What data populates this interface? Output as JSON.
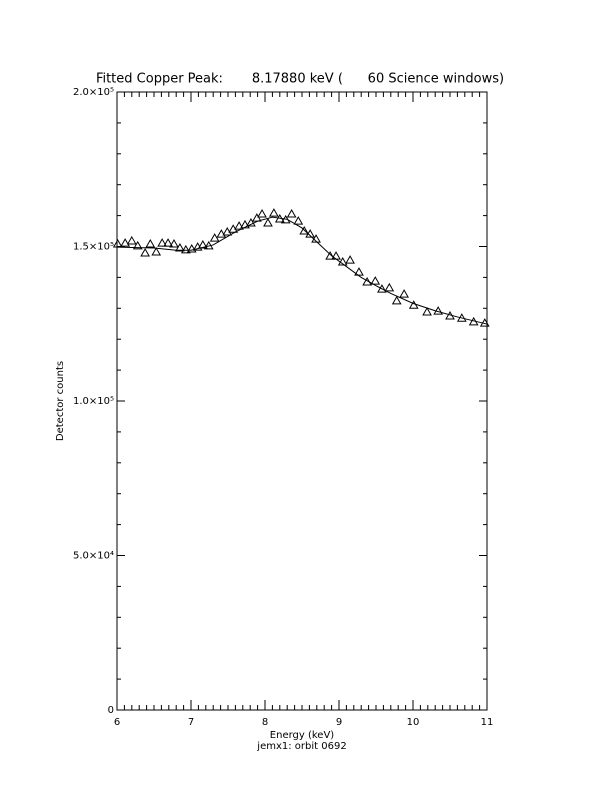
{
  "chart_data": {
    "type": "scatter",
    "title": "Fitted Copper Peak:       8.17880 keV (      60 Science windows)",
    "x_label": "Energy (keV)",
    "y_label": "Detector counts",
    "footer": "jemx1: orbit 0692",
    "xlim": [
      6,
      11
    ],
    "xticks": [
      6,
      7,
      8,
      9,
      10,
      11
    ],
    "ylim": [
      0,
      200000
    ],
    "yticks": [
      0,
      {
        "value": 50000,
        "label": "5.0×10⁴"
      },
      {
        "value": 100000,
        "label": "1.0×10⁵"
      },
      {
        "value": 150000,
        "label": "1.5×10⁵"
      },
      {
        "value": 200000,
        "label": "2.0×10⁵"
      }
    ],
    "minor_ticks": true,
    "color": "#000000",
    "series": [
      {
        "type": "scatter",
        "marker": "triangle",
        "x": [
          6.01,
          6.11,
          6.2,
          6.28,
          6.38,
          6.45,
          6.53,
          6.61,
          6.69,
          6.77,
          6.85,
          6.93,
          7.01,
          7.09,
          7.16,
          7.24,
          7.32,
          7.41,
          7.49,
          7.57,
          7.65,
          7.73,
          7.81,
          7.89,
          7.96,
          8.04,
          8.12,
          8.2,
          8.28,
          8.36,
          8.45,
          8.53,
          8.61,
          8.69,
          8.88,
          8.96,
          9.05,
          9.15,
          9.27,
          9.38,
          9.49,
          9.58,
          9.68,
          9.78,
          9.88,
          10.01,
          10.19,
          10.34,
          10.5,
          10.66,
          10.82,
          10.97
        ],
        "values": [
          150800,
          151100,
          151800,
          150200,
          147900,
          150800,
          148200,
          151100,
          151100,
          150800,
          149500,
          148900,
          149200,
          149800,
          150500,
          150200,
          152700,
          154000,
          154700,
          155600,
          156600,
          157000,
          157600,
          159200,
          160500,
          157600,
          160800,
          158900,
          158600,
          160500,
          158200,
          155000,
          154000,
          152400,
          146900,
          146900,
          145000,
          145600,
          141700,
          138500,
          138800,
          136200,
          136600,
          132400,
          134600,
          131000,
          128800,
          129100,
          127500,
          126800,
          125600,
          125200
        ]
      },
      {
        "type": "line",
        "x": [
          6.0,
          6.5,
          6.8,
          7.0,
          7.3,
          7.6,
          7.9,
          8.1,
          8.3,
          8.5,
          8.7,
          8.9,
          9.1,
          9.3,
          9.5,
          9.7,
          10.0,
          10.3,
          10.6,
          11.0
        ],
        "values": [
          149800,
          149500,
          148800,
          148800,
          150500,
          154700,
          158200,
          159500,
          158800,
          156000,
          151500,
          147000,
          143500,
          140000,
          137300,
          134800,
          131600,
          129200,
          127200,
          124900
        ]
      }
    ]
  }
}
